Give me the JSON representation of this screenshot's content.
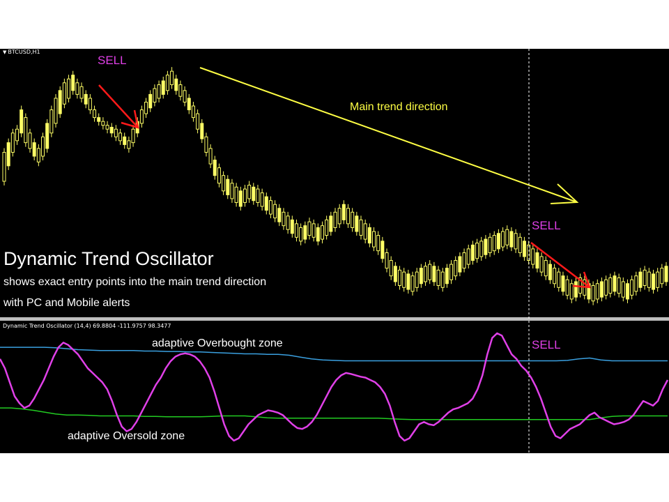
{
  "chart_header": {
    "symbol": "BTCUSD,H1"
  },
  "indicator_header": {
    "text": "Dynamic Trend Oscillator (14,4) 69.8804 -111.9757 98.3477"
  },
  "promo": {
    "title": "Dynamic Trend Oscillator",
    "line1": "shows exact entry points into the main trend direction",
    "line2": "with PC and Mobile alerts"
  },
  "annotations": {
    "sell_1": "SELL",
    "sell_2": "SELL",
    "sell_3": "SELL",
    "trend_label": "Main trend direction",
    "overbought_label": "adaptive Overbought zone",
    "oversold_label": "adaptive Oversold zone"
  },
  "colors": {
    "background": "#000000",
    "candles": "#ffff66",
    "oscillator": "#e040e8",
    "overbought_line": "#3aa0e0",
    "oversold_line": "#22cc22",
    "signal_arrow": "#ff1a1a",
    "trend_arrow": "#ffff44",
    "sell_text": "#e040e8"
  },
  "chart_data": [
    {
      "type": "candlestick",
      "series": [
        {
          "name": "BTCUSD,H1",
          "values": [
            [
              25,
              40
            ],
            [
              33,
              45
            ],
            [
              40,
              50
            ],
            [
              46,
              52
            ],
            [
              50,
              62
            ],
            [
              45,
              58
            ],
            [
              42,
              50
            ],
            [
              38,
              45
            ],
            [
              35,
              42
            ],
            [
              38,
              48
            ],
            [
              42,
              55
            ],
            [
              50,
              62
            ],
            [
              55,
              68
            ],
            [
              60,
              72
            ],
            [
              65,
              76
            ],
            [
              68,
              78
            ],
            [
              72,
              80
            ],
            [
              70,
              76
            ],
            [
              68,
              74
            ],
            [
              65,
              70
            ],
            [
              62,
              68
            ],
            [
              58,
              62
            ],
            [
              56,
              58
            ],
            [
              54,
              56
            ],
            [
              52,
              54
            ],
            [
              50,
              53
            ],
            [
              48,
              52
            ],
            [
              46,
              50
            ],
            [
              44,
              48
            ],
            [
              42,
              46
            ],
            [
              45,
              52
            ],
            [
              50,
              56
            ],
            [
              55,
              62
            ],
            [
              60,
              66
            ],
            [
              63,
              70
            ],
            [
              66,
              73
            ],
            [
              68,
              75
            ],
            [
              70,
              77
            ],
            [
              72,
              80
            ],
            [
              75,
              82
            ],
            [
              72,
              78
            ],
            [
              69,
              75
            ],
            [
              66,
              72
            ],
            [
              62,
              68
            ],
            [
              58,
              64
            ],
            [
              52,
              60
            ],
            [
              47,
              55
            ],
            [
              40,
              48
            ],
            [
              34,
              42
            ],
            [
              28,
              36
            ],
            [
              24,
              32
            ],
            [
              20,
              28
            ],
            [
              18,
              26
            ],
            [
              16,
              24
            ],
            [
              14,
              22
            ],
            [
              12,
              20
            ],
            [
              14,
              21
            ],
            [
              16,
              23
            ],
            [
              15,
              22
            ],
            [
              14,
              21
            ],
            [
              12,
              19
            ],
            [
              10,
              17
            ],
            [
              8,
              15
            ],
            [
              6,
              13
            ],
            [
              4,
              11
            ],
            [
              2,
              9
            ],
            [
              0,
              7
            ],
            [
              -2,
              5
            ],
            [
              -4,
              3
            ],
            [
              -6,
              1
            ],
            [
              -5,
              2
            ],
            [
              -3,
              4
            ],
            [
              -4,
              3
            ],
            [
              -6,
              1
            ],
            [
              -5,
              2
            ],
            [
              -3,
              5
            ],
            [
              -1,
              7
            ],
            [
              1,
              9
            ],
            [
              3,
              11
            ],
            [
              5,
              13
            ],
            [
              3,
              11
            ],
            [
              1,
              9
            ],
            [
              -1,
              7
            ],
            [
              -3,
              5
            ],
            [
              -5,
              3
            ],
            [
              -7,
              1
            ],
            [
              -9,
              -1
            ],
            [
              -11,
              -3
            ],
            [
              -15,
              -6
            ],
            [
              -20,
              -12
            ],
            [
              -24,
              -16
            ],
            [
              -27,
              -19
            ],
            [
              -29,
              -21
            ],
            [
              -30,
              -22
            ],
            [
              -31,
              -23
            ],
            [
              -32,
              -24
            ],
            [
              -30,
              -22
            ],
            [
              -28,
              -20
            ],
            [
              -27,
              -19
            ],
            [
              -26,
              -18
            ],
            [
              -27,
              -19
            ],
            [
              -29,
              -21
            ],
            [
              -30,
              -22
            ],
            [
              -28,
              -20
            ],
            [
              -26,
              -18
            ],
            [
              -24,
              -16
            ],
            [
              -22,
              -14
            ],
            [
              -20,
              -12
            ],
            [
              -18,
              -10
            ],
            [
              -16,
              -8
            ],
            [
              -15,
              -7
            ],
            [
              -14,
              -6
            ],
            [
              -13,
              -5
            ],
            [
              -12,
              -4
            ],
            [
              -11,
              -3
            ],
            [
              -10,
              -2
            ],
            [
              -9,
              -1
            ],
            [
              -8,
              0
            ],
            [
              -9,
              -1
            ],
            [
              -10,
              -2
            ],
            [
              -12,
              -4
            ],
            [
              -14,
              -6
            ],
            [
              -16,
              -8
            ],
            [
              -18,
              -10
            ],
            [
              -20,
              -12
            ],
            [
              -22,
              -14
            ],
            [
              -24,
              -16
            ],
            [
              -26,
              -18
            ],
            [
              -28,
              -20
            ],
            [
              -30,
              -22
            ],
            [
              -32,
              -24
            ],
            [
              -34,
              -26
            ],
            [
              -36,
              -28
            ],
            [
              -35,
              -27
            ],
            [
              -33,
              -25
            ],
            [
              -34,
              -26
            ],
            [
              -36,
              -28
            ],
            [
              -37,
              -29
            ],
            [
              -36,
              -28
            ],
            [
              -35,
              -27
            ],
            [
              -34,
              -26
            ],
            [
              -33,
              -25
            ],
            [
              -32,
              -24
            ],
            [
              -33,
              -25
            ],
            [
              -35,
              -27
            ],
            [
              -36,
              -28
            ],
            [
              -34,
              -26
            ],
            [
              -32,
              -24
            ],
            [
              -30,
              -22
            ],
            [
              -29,
              -21
            ],
            [
              -30,
              -22
            ],
            [
              -31,
              -23
            ],
            [
              -30,
              -22
            ],
            [
              -28,
              -20
            ],
            [
              -27,
              -19
            ]
          ]
        }
      ]
    },
    {
      "type": "line",
      "series": [
        {
          "name": "Dynamic Trend Oscillator",
          "values": [
            60,
            40,
            10,
            -20,
            -35,
            -45,
            -40,
            -25,
            -5,
            15,
            40,
            65,
            85,
            95,
            90,
            80,
            70,
            55,
            40,
            30,
            20,
            10,
            -5,
            -30,
            -60,
            -85,
            -95,
            -90,
            -75,
            -55,
            -35,
            -15,
            5,
            20,
            40,
            55,
            65,
            70,
            72,
            70,
            65,
            55,
            40,
            20,
            -10,
            -45,
            -80,
            -105,
            -115,
            -110,
            -95,
            -80,
            -70,
            -60,
            -55,
            -50,
            -52,
            -55,
            -60,
            -70,
            -80,
            -88,
            -90,
            -85,
            -75,
            -60,
            -40,
            -20,
            0,
            15,
            25,
            30,
            28,
            25,
            22,
            20,
            15,
            10,
            0,
            -15,
            -40,
            -75,
            -105,
            -115,
            -110,
            -95,
            -80,
            -75,
            -80,
            -82,
            -75,
            -65,
            -55,
            -48,
            -45,
            -40,
            -35,
            -25,
            -5,
            25,
            70,
            105,
            115,
            110,
            90,
            70,
            60,
            45,
            35,
            20,
            0,
            -25,
            -55,
            -85,
            -105,
            -110,
            -100,
            -90,
            -85,
            -80,
            -70,
            -60,
            -55,
            -65,
            -70,
            -75,
            -80,
            -78,
            -75,
            -70,
            -60,
            -45,
            -30,
            -35,
            -40,
            -30,
            -5,
            15
          ]
        },
        {
          "name": "adaptive Overbought zone",
          "values": [
            85,
            85,
            85,
            85,
            85,
            84,
            82,
            80,
            79,
            78,
            78,
            78,
            78,
            77,
            77,
            76,
            76,
            75,
            75,
            74,
            73,
            72,
            71,
            71,
            70,
            70,
            68,
            64,
            60,
            58,
            57,
            56,
            56,
            56,
            56,
            56,
            56,
            56,
            56,
            56,
            56,
            56,
            56,
            56,
            56,
            56,
            56,
            56,
            56,
            56,
            56,
            57,
            60,
            62,
            58,
            56,
            56,
            56,
            56,
            56,
            56
          ]
        },
        {
          "name": "adaptive Oversold zone",
          "values": [
            -45,
            -45,
            -47,
            -50,
            -54,
            -58,
            -60,
            -60,
            -61,
            -62,
            -62,
            -62,
            -62,
            -63,
            -63,
            -64,
            -64,
            -64,
            -64,
            -63,
            -62,
            -62,
            -62,
            -64,
            -66,
            -67,
            -67,
            -67,
            -67,
            -67,
            -67,
            -67,
            -67,
            -67,
            -67,
            -68,
            -69,
            -70,
            -70,
            -70,
            -70,
            -70,
            -70,
            -70,
            -70,
            -70,
            -70,
            -70,
            -70,
            -70,
            -70,
            -70,
            -70,
            -70,
            -66,
            -63,
            -62,
            -62,
            -62,
            -62,
            -62
          ]
        }
      ]
    }
  ]
}
